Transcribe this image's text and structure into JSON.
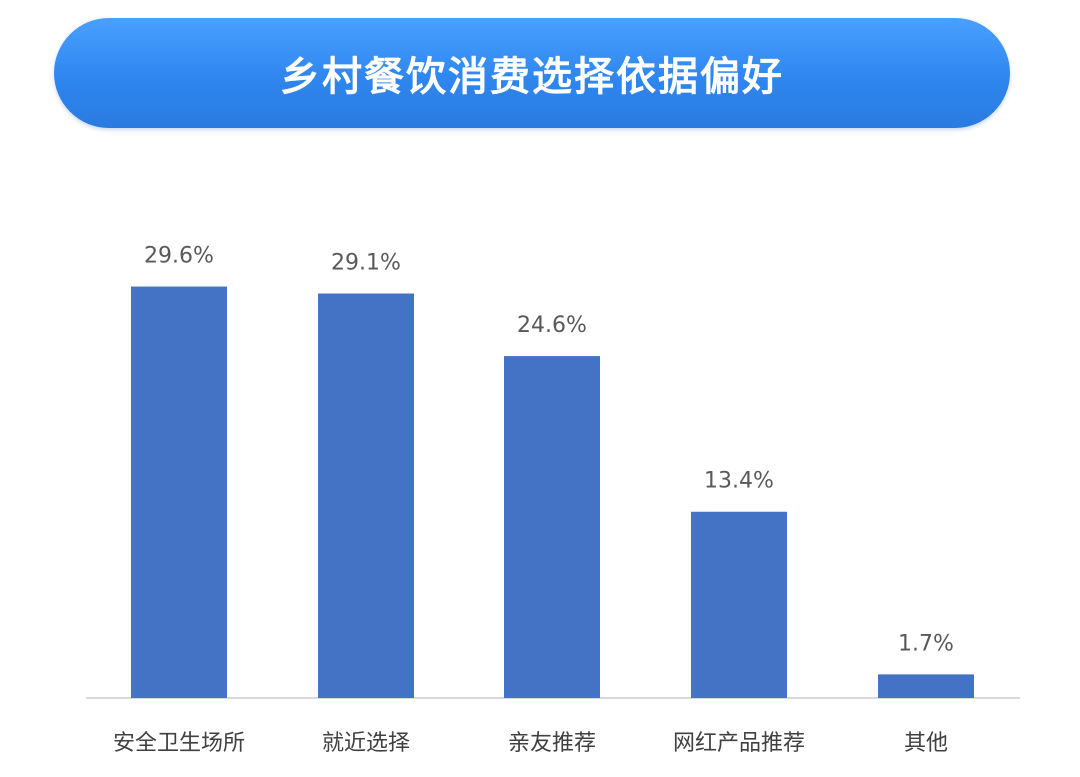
{
  "chart_data": {
    "type": "bar",
    "title": "乡村餐饮消费选择依据偏好",
    "categories": [
      "安全卫生场所",
      "就近选择",
      "亲友推荐",
      "网红产品推荐",
      "其他"
    ],
    "values": [
      29.6,
      29.1,
      24.6,
      13.4,
      1.7
    ],
    "value_labels": [
      "29.6%",
      "29.1%",
      "24.6%",
      "13.4%",
      "1.7%"
    ],
    "ylim": [
      0,
      32
    ],
    "grid": false,
    "legend": "none",
    "colors": {
      "bar": "#4472c4",
      "axis": "#d9d9d9",
      "title_bg": "#2f86ee",
      "title_text": "#ffffff"
    }
  }
}
